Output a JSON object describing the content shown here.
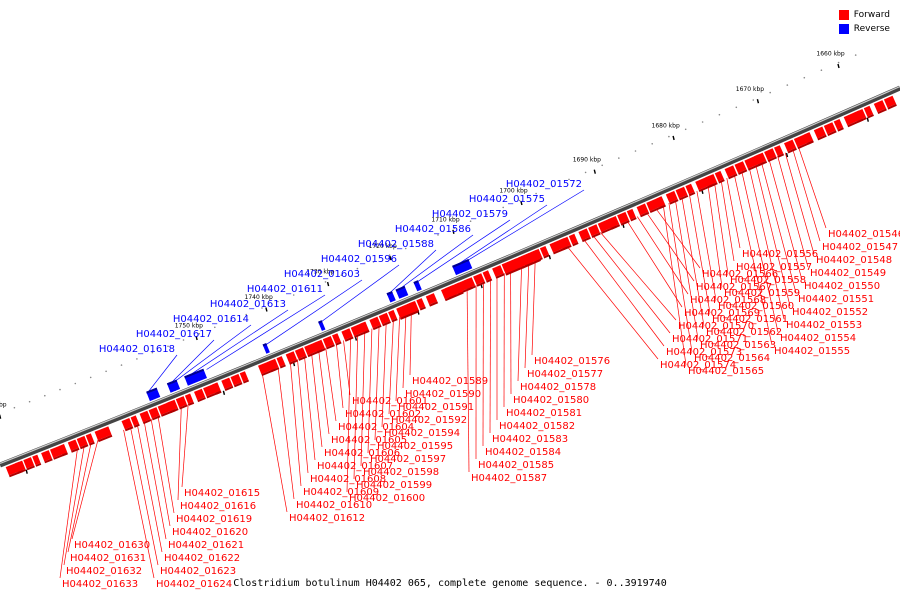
{
  "legend": {
    "forward_label": "Forward",
    "reverse_label": "Reverse",
    "forward_color": "#ff0000",
    "reverse_color": "#0000ff"
  },
  "caption": "Clostridium botulinum H04402 065, complete genome sequence. - 0..3919740",
  "axis": {
    "ticks": [
      "1660 kbp",
      "1670 kbp",
      "1680 kbp",
      "1690 kbp",
      "1700 kbp",
      "1710 kbp",
      "1720 kbp",
      "1730 kbp",
      "1740 kbp",
      "1750 kbp",
      "1760 kbp"
    ]
  },
  "genes": {
    "reverse": [
      {
        "label": "H04402_01572",
        "t": 0.535
      },
      {
        "label": "H04402_01575",
        "t": 0.525
      },
      {
        "label": "H04402_01579",
        "t": 0.482
      },
      {
        "label": "H04402_01586",
        "t": 0.462
      },
      {
        "label": "H04402_01588",
        "t": 0.452
      },
      {
        "label": "H04402_01596",
        "t": 0.375
      },
      {
        "label": "H04402_01603",
        "t": 0.312
      },
      {
        "label": "H04402_01611",
        "t": 0.247
      },
      {
        "label": "H04402_01613",
        "t": 0.222
      },
      {
        "label": "H04402_01614",
        "t": 0.207
      },
      {
        "label": "H04402_01617",
        "t": 0.204
      },
      {
        "label": "H04402_01618",
        "t": 0.178
      }
    ],
    "forward_right": [
      {
        "label": "H04402_01546",
        "t": 0.888
      },
      {
        "label": "H04402_01547",
        "t": 0.882
      },
      {
        "label": "H04402_01548",
        "t": 0.874
      },
      {
        "label": "H04402_01549",
        "t": 0.866
      },
      {
        "label": "H04402_01550",
        "t": 0.857
      },
      {
        "label": "H04402_01551",
        "t": 0.849
      },
      {
        "label": "H04402_01552",
        "t": 0.843
      },
      {
        "label": "H04402_01553",
        "t": 0.836
      },
      {
        "label": "H04402_01554",
        "t": 0.828
      },
      {
        "label": "H04402_01555",
        "t": 0.82
      },
      {
        "label": "H04402_01556",
        "t": 0.812
      },
      {
        "label": "H04402_01557",
        "t": 0.806
      },
      {
        "label": "H04402_01558",
        "t": 0.799
      },
      {
        "label": "H04402_01559",
        "t": 0.792
      },
      {
        "label": "H04402_01560",
        "t": 0.78
      },
      {
        "label": "H04402_01561",
        "t": 0.772
      },
      {
        "label": "H04402_01562",
        "t": 0.764
      },
      {
        "label": "H04402_01563",
        "t": 0.757
      },
      {
        "label": "H04402_01564",
        "t": 0.75
      },
      {
        "label": "H04402_01565",
        "t": 0.744
      },
      {
        "label": "H04402_01566",
        "t": 0.736
      },
      {
        "label": "H04402_01567",
        "t": 0.726
      },
      {
        "label": "H04402_01568",
        "t": 0.716
      },
      {
        "label": "H04402_01569",
        "t": 0.705
      },
      {
        "label": "H04402_01570",
        "t": 0.676
      },
      {
        "label": "H04402_01571",
        "t": 0.668
      },
      {
        "label": "H04402_01573",
        "t": 0.658
      },
      {
        "label": "H04402_01574",
        "t": 0.64
      }
    ],
    "forward_mid": [
      {
        "label": "H04402_01576",
        "t": 0.605
      },
      {
        "label": "H04402_01577",
        "t": 0.598
      },
      {
        "label": "H04402_01578",
        "t": 0.59
      },
      {
        "label": "H04402_01580",
        "t": 0.578
      },
      {
        "label": "H04402_01581",
        "t": 0.571
      },
      {
        "label": "H04402_01582",
        "t": 0.563
      },
      {
        "label": "H04402_01583",
        "t": 0.556
      },
      {
        "label": "H04402_01584",
        "t": 0.548
      },
      {
        "label": "H04402_01585",
        "t": 0.54
      },
      {
        "label": "H04402_01587",
        "t": 0.53
      },
      {
        "label": "H04402_01589",
        "t": 0.468
      },
      {
        "label": "H04402_01590",
        "t": 0.462
      },
      {
        "label": "H04402_01591",
        "t": 0.455
      },
      {
        "label": "H04402_01592",
        "t": 0.448
      },
      {
        "label": "H04402_01594",
        "t": 0.44
      },
      {
        "label": "H04402_01595",
        "t": 0.432
      },
      {
        "label": "H04402_01597",
        "t": 0.424
      },
      {
        "label": "H04402_01598",
        "t": 0.416
      },
      {
        "label": "H04402_01599",
        "t": 0.408
      },
      {
        "label": "H04402_01600",
        "t": 0.4
      },
      {
        "label": "H04402_01601",
        "t": 0.392
      },
      {
        "label": "H04402_01602",
        "t": 0.384
      },
      {
        "label": "H04402_01604",
        "t": 0.372
      },
      {
        "label": "H04402_01605",
        "t": 0.364
      },
      {
        "label": "H04402_01606",
        "t": 0.356
      },
      {
        "label": "H04402_01607",
        "t": 0.348
      },
      {
        "label": "H04402_01608",
        "t": 0.34
      },
      {
        "label": "H04402_01609",
        "t": 0.332
      },
      {
        "label": "H04402_01610",
        "t": 0.318
      },
      {
        "label": "H04402_01612",
        "t": 0.3
      }
    ],
    "forward_left": [
      {
        "label": "H04402_01615",
        "t": 0.215
      },
      {
        "label": "H04402_01616",
        "t": 0.207
      },
      {
        "label": "H04402_01619",
        "t": 0.18
      },
      {
        "label": "H04402_01620",
        "t": 0.172
      },
      {
        "label": "H04402_01621",
        "t": 0.164
      },
      {
        "label": "H04402_01622",
        "t": 0.156
      },
      {
        "label": "H04402_01623",
        "t": 0.148
      },
      {
        "label": "H04402_01624",
        "t": 0.14
      },
      {
        "label": "H04402_01630",
        "t": 0.11
      },
      {
        "label": "H04402_01631",
        "t": 0.102
      },
      {
        "label": "H04402_01632",
        "t": 0.094
      },
      {
        "label": "H04402_01633",
        "t": 0.086
      }
    ]
  }
}
